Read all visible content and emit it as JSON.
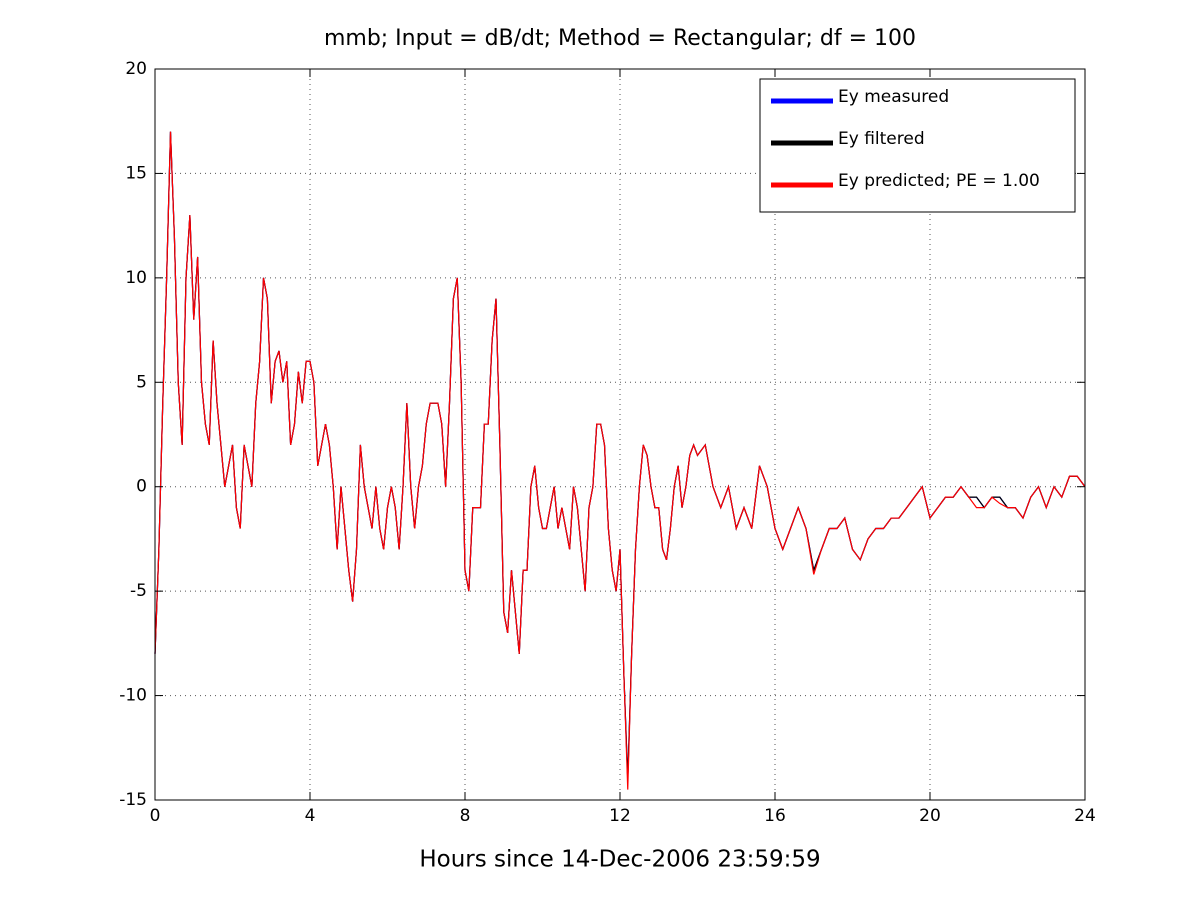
{
  "chart_data": {
    "type": "line",
    "title": "mmb; Input = dB/dt; Method = Rectangular; df = 100",
    "x_label": "Hours since 14-Dec-2006 23:59:59",
    "xlim": [
      0,
      24
    ],
    "xticks": [
      0,
      4,
      8,
      12,
      16,
      20,
      24
    ],
    "ylim": [
      -15,
      20
    ],
    "yticks": [
      -15,
      -10,
      -5,
      0,
      5,
      10,
      15,
      20
    ],
    "grid": true,
    "legend": "upper right",
    "x": [
      0,
      0.1,
      0.2,
      0.3,
      0.4,
      0.5,
      0.6,
      0.7,
      0.8,
      0.9,
      1,
      1.1,
      1.2,
      1.3,
      1.4,
      1.5,
      1.6,
      1.7,
      1.8,
      1.9,
      2,
      2.1,
      2.2,
      2.3,
      2.4,
      2.5,
      2.6,
      2.7,
      2.8,
      2.9,
      3,
      3.1,
      3.2,
      3.3,
      3.4,
      3.5,
      3.6,
      3.7,
      3.8,
      3.9,
      4,
      4.1,
      4.2,
      4.3,
      4.4,
      4.5,
      4.6,
      4.7,
      4.8,
      4.9,
      5,
      5.1,
      5.2,
      5.3,
      5.4,
      5.5,
      5.6,
      5.7,
      5.8,
      5.9,
      6,
      6.1,
      6.2,
      6.3,
      6.4,
      6.5,
      6.6,
      6.7,
      6.8,
      6.9,
      7,
      7.1,
      7.2,
      7.3,
      7.4,
      7.5,
      7.6,
      7.7,
      7.8,
      7.9,
      8,
      8.1,
      8.2,
      8.3,
      8.4,
      8.5,
      8.6,
      8.7,
      8.8,
      8.9,
      9,
      9.1,
      9.2,
      9.3,
      9.4,
      9.5,
      9.6,
      9.7,
      9.8,
      9.9,
      10,
      10.1,
      10.2,
      10.3,
      10.4,
      10.5,
      10.6,
      10.7,
      10.8,
      10.9,
      11,
      11.1,
      11.2,
      11.3,
      11.4,
      11.5,
      11.6,
      11.7,
      11.8,
      11.9,
      12,
      12.1,
      12.2,
      12.3,
      12.4,
      12.5,
      12.6,
      12.7,
      12.8,
      12.9,
      13,
      13.1,
      13.2,
      13.3,
      13.4,
      13.5,
      13.6,
      13.7,
      13.8,
      13.9,
      14,
      14.2,
      14.4,
      14.6,
      14.8,
      15,
      15.2,
      15.4,
      15.6,
      15.8,
      16,
      16.2,
      16.4,
      16.6,
      16.8,
      17,
      17.2,
      17.4,
      17.6,
      17.8,
      18,
      18.2,
      18.4,
      18.6,
      18.8,
      19,
      19.2,
      19.4,
      19.6,
      19.8,
      20,
      20.2,
      20.4,
      20.6,
      20.8,
      21,
      21.2,
      21.4,
      21.6,
      21.8,
      22,
      22.2,
      22.4,
      22.6,
      22.8,
      23,
      23.2,
      23.4,
      23.6,
      23.8,
      24
    ],
    "series": [
      {
        "name": "Ey measured",
        "color": "#0000ff",
        "values": [
          -8,
          -3,
          4,
          10,
          17,
          12,
          5,
          2,
          10,
          13,
          8,
          11,
          5,
          3,
          2,
          7,
          4,
          2,
          0,
          1,
          2,
          -1,
          -2,
          2,
          1,
          0,
          4,
          6,
          10,
          9,
          4,
          6,
          6.5,
          5,
          6,
          2,
          3,
          5.5,
          4,
          6,
          6,
          5,
          1,
          2,
          3,
          2,
          0,
          -3,
          0,
          -2,
          -4,
          -5.5,
          -3,
          2,
          0,
          -1,
          -2,
          0,
          -2,
          -3,
          -1,
          0,
          -1,
          -3,
          0,
          4,
          0,
          -2,
          0,
          1,
          3,
          4,
          4,
          4,
          3,
          0,
          4,
          9,
          10,
          5,
          -4,
          -5,
          -1,
          -1,
          -1,
          3,
          3,
          7,
          9,
          2,
          -6,
          -7,
          -4,
          -6,
          -8,
          -4,
          -4,
          0,
          1,
          -1,
          -2,
          -2,
          -1,
          0,
          -2,
          -1,
          -2,
          -3,
          0,
          -1,
          -3,
          -5,
          -1,
          0,
          3,
          3,
          2,
          -2,
          -4,
          -5,
          -3,
          -9,
          -14,
          -8,
          -3,
          0,
          2,
          1.5,
          0,
          -1,
          -1,
          -3,
          -3.5,
          -2,
          0,
          1,
          -1,
          0,
          1.5,
          2,
          1.5,
          2,
          0,
          -1,
          0,
          -2,
          -1,
          -2,
          1,
          0,
          -2,
          -3,
          -2,
          -1,
          -2,
          -4,
          -3,
          -2,
          -2,
          -1.5,
          -3,
          -3.5,
          -2.5,
          -2,
          -2,
          -1.5,
          -1.5,
          -1,
          -0.5,
          0,
          -1.5,
          -1,
          -0.5,
          -0.5,
          0,
          -0.5,
          -0.5,
          -1,
          -0.5,
          -0.5,
          -1,
          -1,
          -1.5,
          -0.5,
          0,
          -1,
          0,
          -0.5,
          0.5,
          0.5,
          0
        ]
      },
      {
        "name": "Ey filtered",
        "color": "#000000",
        "values": [
          -8,
          -3,
          4,
          10,
          17,
          12,
          5,
          2,
          10,
          13,
          8,
          11,
          5,
          3,
          2,
          7,
          4,
          2,
          0,
          1,
          2,
          -1,
          -2,
          2,
          1,
          0,
          4,
          6,
          10,
          9,
          4,
          6,
          6.5,
          5,
          6,
          2,
          3,
          5.5,
          4,
          6,
          6,
          5,
          1,
          2,
          3,
          2,
          0,
          -3,
          0,
          -2,
          -4,
          -5.5,
          -3,
          2,
          0,
          -1,
          -2,
          0,
          -2,
          -3,
          -1,
          0,
          -1,
          -3,
          0,
          4,
          0,
          -2,
          0,
          1,
          3,
          4,
          4,
          4,
          3,
          0,
          4,
          9,
          10,
          5,
          -4,
          -5,
          -1,
          -1,
          -1,
          3,
          3,
          7,
          9,
          2,
          -6,
          -7,
          -4,
          -6,
          -8,
          -4,
          -4,
          0,
          1,
          -1,
          -2,
          -2,
          -1,
          0,
          -2,
          -1,
          -2,
          -3,
          0,
          -1,
          -3,
          -5,
          -1,
          0,
          3,
          3,
          2,
          -2,
          -4,
          -5,
          -3,
          -9,
          -14,
          -8,
          -3,
          0,
          2,
          1.5,
          0,
          -1,
          -1,
          -3,
          -3.5,
          -2,
          0,
          1,
          -1,
          0,
          1.5,
          2,
          1.5,
          2,
          0,
          -1,
          0,
          -2,
          -1,
          -2,
          1,
          0,
          -2,
          -3,
          -2,
          -1,
          -2,
          -4,
          -3,
          -2,
          -2,
          -1.5,
          -3,
          -3.5,
          -2.5,
          -2,
          -2,
          -1.5,
          -1.5,
          -1,
          -0.5,
          0,
          -1.5,
          -1,
          -0.5,
          -0.5,
          0,
          -0.5,
          -0.5,
          -1,
          -0.5,
          -0.5,
          -1,
          -1,
          -1.5,
          -0.5,
          0,
          -1,
          0,
          -0.5,
          0.5,
          0.5,
          0
        ]
      },
      {
        "name": "Ey predicted; PE = 1.00",
        "color": "#ff0000",
        "values": [
          -8,
          -3,
          4,
          10,
          17,
          12,
          5,
          2,
          10,
          13,
          8,
          11,
          5,
          3,
          2,
          7,
          4,
          2,
          0,
          1,
          2,
          -1,
          -2,
          2,
          1,
          0,
          4,
          6,
          10,
          9,
          4,
          6,
          6.5,
          5,
          6,
          2,
          3,
          5.5,
          4,
          6,
          6,
          5,
          1,
          2,
          3,
          2,
          0,
          -3,
          0,
          -2,
          -4,
          -5.5,
          -3,
          2,
          0,
          -1,
          -2,
          0,
          -2,
          -3,
          -1,
          0,
          -1,
          -3,
          0,
          4,
          0,
          -2,
          0,
          1,
          3,
          4,
          4,
          4,
          3,
          0,
          4,
          9,
          10,
          5,
          -4,
          -5,
          -1,
          -1,
          -1,
          3,
          3,
          7,
          9,
          2,
          -6,
          -7,
          -4,
          -6,
          -8,
          -4,
          -4,
          0,
          1,
          -1,
          -2,
          -2,
          -1,
          0,
          -2,
          -1,
          -2,
          -3,
          0,
          -1,
          -3,
          -5,
          -1,
          0,
          3,
          3,
          2,
          -2,
          -4,
          -5,
          -3,
          -9,
          -14.5,
          -8,
          -3,
          0,
          2,
          1.5,
          0,
          -1,
          -1,
          -3,
          -3.5,
          -2,
          0,
          1,
          -1,
          0,
          1.5,
          2,
          1.5,
          2,
          0,
          -1,
          0,
          -2,
          -1,
          -2,
          1,
          0,
          -2,
          -3,
          -2,
          -1,
          -2,
          -4.2,
          -3,
          -2,
          -2,
          -1.5,
          -3,
          -3.5,
          -2.5,
          -2,
          -2,
          -1.5,
          -1.5,
          -1,
          -0.5,
          0,
          -1.5,
          -1,
          -0.5,
          -0.5,
          0,
          -0.5,
          -1,
          -1,
          -0.5,
          -0.8,
          -1,
          -1,
          -1.5,
          -0.5,
          0,
          -1,
          0,
          -0.5,
          0.5,
          0.5,
          0
        ]
      }
    ]
  }
}
